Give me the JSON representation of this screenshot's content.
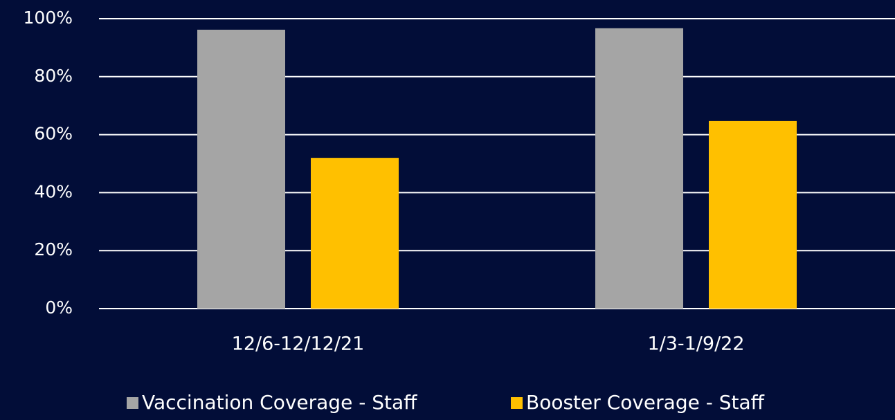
{
  "chart_data": {
    "type": "bar",
    "categories": [
      "12/6-12/12/21",
      "1/3-1/9/22"
    ],
    "series": [
      {
        "name": "Vaccination Coverage - Staff",
        "color": "#a5a5a5",
        "values": [
          96.2,
          96.7
        ]
      },
      {
        "name": "Booster Coverage - Staff",
        "color": "#ffc000",
        "values": [
          52,
          64.7
        ]
      }
    ],
    "ylim": [
      0,
      100
    ],
    "yticks": [
      {
        "value": 0,
        "label": "0%"
      },
      {
        "value": 20,
        "label": "20%"
      },
      {
        "value": 40,
        "label": "40%"
      },
      {
        "value": 60,
        "label": "60%"
      },
      {
        "value": 80,
        "label": "80%"
      },
      {
        "value": 100,
        "label": "100%"
      }
    ],
    "grid": true,
    "legend": "bottom",
    "background": "#020d38"
  }
}
